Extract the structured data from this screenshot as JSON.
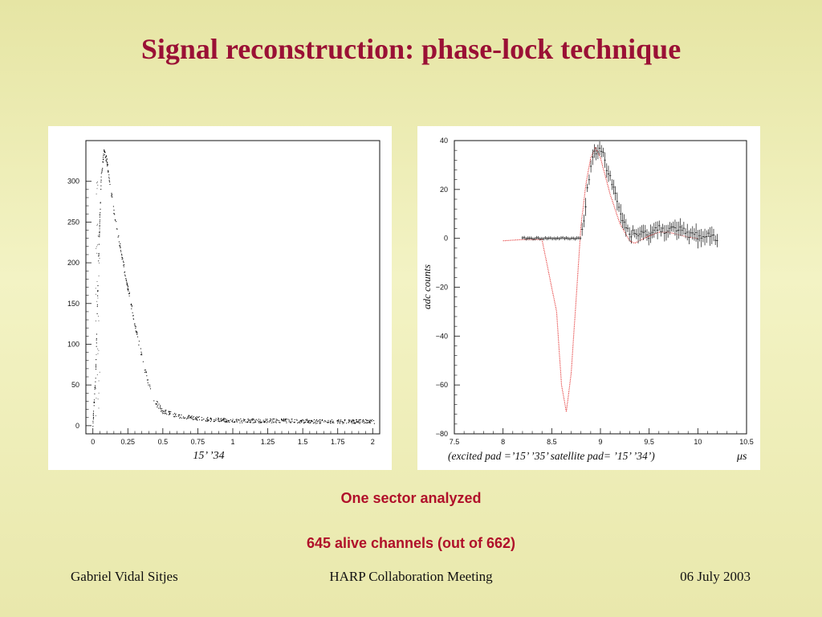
{
  "slide": {
    "title": "Signal reconstruction: phase-lock technique",
    "captions": [
      "One sector analyzed",
      "645 alive channels (out of 662)"
    ],
    "footer": {
      "author": "Gabriel Vidal Sitjes",
      "event": "HARP Collaboration Meeting",
      "date": "06 July 2003"
    },
    "colors": {
      "title": "#9a1035",
      "caption": "#b0102a",
      "fit_red": "#e01818"
    }
  },
  "chart_data": [
    {
      "type": "scatter",
      "title": "",
      "xlabel": "15’ ’34",
      "ylabel": "",
      "xlim": [
        -0.05,
        2.05
      ],
      "ylim": [
        -10,
        350
      ],
      "x_ticks": [
        0,
        0.25,
        0.5,
        0.75,
        1,
        1.25,
        1.5,
        1.75,
        2
      ],
      "x_tick_labels": [
        "0",
        "0.25",
        "0.5",
        "0.75",
        "1",
        "1.25",
        "1.5",
        "1.75",
        "2"
      ],
      "y_ticks": [
        0,
        50,
        100,
        150,
        200,
        250,
        300
      ],
      "y_tick_labels": [
        "0",
        "50",
        "100",
        "150",
        "200",
        "250",
        "300"
      ],
      "series": [
        {
          "x": [
            0.0,
            0.02,
            0.04,
            0.06,
            0.08,
            0.1,
            0.12,
            0.15,
            0.18,
            0.2,
            0.25,
            0.3,
            0.35,
            0.4,
            0.45,
            0.5,
            0.55,
            0.6,
            0.7,
            0.8,
            0.9,
            1.0,
            1.2,
            1.4,
            1.6,
            1.8,
            2.0
          ],
          "y": [
            0,
            60,
            200,
            305,
            338,
            325,
            300,
            265,
            235,
            215,
            170,
            125,
            85,
            50,
            28,
            18,
            15,
            12,
            10,
            8,
            7,
            6,
            6,
            6,
            5,
            5,
            5
          ]
        }
      ]
    },
    {
      "type": "line",
      "title": "",
      "xlabel": "(excited pad =’15’ ’35’ satellite pad= ’15’ ’34’)",
      "xunit": "μs",
      "ylabel": "adc counts",
      "xlim": [
        7.5,
        10.5
      ],
      "ylim": [
        -80,
        40
      ],
      "x_ticks": [
        7.5,
        8,
        8.5,
        9,
        9.5,
        10,
        10.5
      ],
      "x_tick_labels": [
        "7.5",
        "8",
        "8.5",
        "9",
        "9.5",
        "10",
        "10.5"
      ],
      "y_ticks": [
        -80,
        -60,
        -40,
        -20,
        0,
        20,
        40
      ],
      "y_tick_labels": [
        "−80",
        "−60",
        "−40",
        "−20",
        "0",
        "20",
        "40"
      ],
      "series": [
        {
          "x": [
            8.0,
            8.2,
            8.4,
            8.55,
            8.6,
            8.65,
            8.7,
            8.75,
            8.8,
            8.85,
            8.9,
            8.95,
            9.0,
            9.1,
            9.2,
            9.3,
            9.35,
            9.4,
            9.5,
            9.6,
            9.7,
            9.8,
            9.9,
            10.0
          ],
          "y": [
            -1,
            -0.5,
            -0.5,
            -30,
            -60,
            -71,
            -55,
            -25,
            5,
            22,
            33,
            37,
            33,
            18,
            6,
            -1,
            -2,
            -1,
            1,
            2.5,
            2.5,
            1.5,
            0.5,
            0
          ]
        },
        {
          "x": [
            8.2,
            8.4,
            8.6,
            8.8,
            8.85,
            8.9,
            8.95,
            9.0,
            9.1,
            9.2,
            9.3,
            9.4,
            9.5,
            9.6,
            9.7,
            9.8,
            9.9,
            10.0,
            10.1,
            10.2
          ],
          "y": [
            0,
            0,
            0,
            0,
            15,
            28,
            36,
            37,
            25,
            10,
            2,
            1,
            2,
            4,
            4,
            3,
            2,
            1,
            1,
            1
          ]
        }
      ]
    }
  ]
}
